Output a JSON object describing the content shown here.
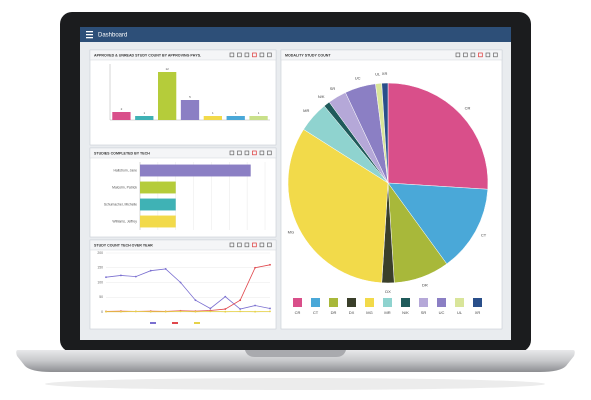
{
  "header": {
    "title": "Dashboard"
  },
  "chart_data": [
    {
      "type": "bar",
      "title": "APPROVED & UNREAD STUDY COUNT BY APPROVING PHYS.",
      "categories": [
        null,
        null,
        null,
        null,
        null,
        null,
        null
      ],
      "values": [
        2,
        1,
        12,
        5,
        1,
        1,
        1
      ],
      "colors": [
        "#d94f8a",
        "#3fb2b5",
        "#b5cc3a",
        "#8b7fc4",
        "#f2da4a",
        "#4aa8d8",
        "#c9e08a"
      ],
      "ylim": [
        0,
        14
      ]
    },
    {
      "type": "hbar",
      "title": "STUDIES COMPLETED BY TECH",
      "categories": [
        "Hallstrom, Jane",
        "Malcolm, Patrick",
        "Schumacher, Michelle",
        "Williams, Jeffrey"
      ],
      "values": [
        62,
        20,
        20,
        20
      ],
      "colors": [
        "#8b7fc4",
        "#b5cc3a",
        "#3fb2b5",
        "#f2da4a"
      ],
      "xlim": [
        0,
        70
      ]
    },
    {
      "type": "line",
      "title": "STUDY COUNT TECH OVER YEAR",
      "categories": [
        null,
        null,
        null,
        null,
        null,
        null,
        null,
        null,
        null,
        null,
        null,
        null
      ],
      "series": [
        {
          "color": "#7a6fd0",
          "values": [
            118,
            124,
            120,
            140,
            146,
            100,
            40,
            12,
            52,
            10,
            22,
            12
          ]
        },
        {
          "color": "#e0474c",
          "values": [
            2,
            3,
            2,
            3,
            2,
            4,
            3,
            5,
            10,
            40,
            150,
            160
          ]
        },
        {
          "color": "#e6d24a",
          "values": [
            1,
            1,
            2,
            1,
            1,
            2,
            1,
            2,
            1,
            2,
            1,
            2
          ]
        }
      ],
      "ylim": [
        0,
        200
      ],
      "yticks": [
        0,
        50,
        100,
        150,
        200
      ]
    },
    {
      "type": "pie",
      "title": "MODALITY STUDY COUNT",
      "categories": [
        "CR",
        "CT",
        "DR",
        "DX",
        "MG",
        "MR",
        "N/K",
        "SR",
        "UC",
        "UL",
        "XR"
      ],
      "values": [
        26,
        14,
        9,
        2,
        33,
        5,
        1,
        3,
        5,
        1,
        1
      ],
      "colors": [
        "#d94f8a",
        "#4aa8d8",
        "#a8b83a",
        "#3a3f2a",
        "#f2da4a",
        "#8fd3cf",
        "#1f5a5a",
        "#b5a8d8",
        "#8b7fc4",
        "#d9e59a",
        "#2a4f8a"
      ]
    }
  ]
}
